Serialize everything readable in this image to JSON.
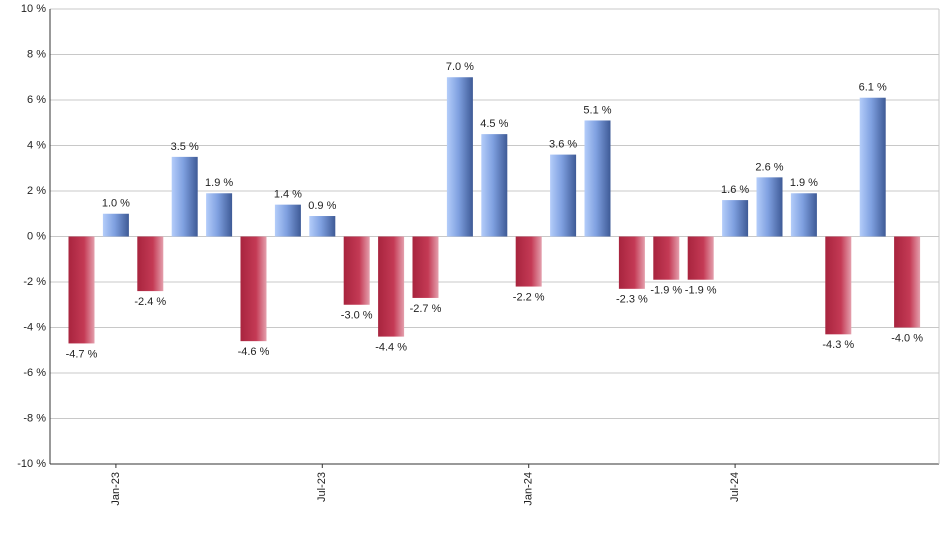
{
  "chart_data": {
    "type": "bar",
    "categories": [
      null,
      "Jan-23",
      null,
      null,
      null,
      null,
      null,
      "Jul-23",
      null,
      null,
      null,
      null,
      null,
      "Jan-24",
      null,
      null,
      null,
      null,
      null,
      "Jul-24",
      null,
      null,
      null,
      null,
      null
    ],
    "values": [
      -4.7,
      1.0,
      -2.4,
      3.5,
      1.9,
      -4.6,
      1.4,
      0.9,
      -3.0,
      -4.4,
      -2.7,
      7.0,
      4.5,
      -2.2,
      3.6,
      5.1,
      -2.3,
      -1.9,
      -1.9,
      1.6,
      2.6,
      1.9,
      -4.3,
      6.1,
      -4.0
    ],
    "value_labels": [
      "-4.7 %",
      "1.0 %",
      "-2.4 %",
      "3.5 %",
      "1.9 %",
      "-4.6 %",
      "1.4 %",
      "0.9 %",
      "-3.0 %",
      "-4.4 %",
      "-2.7 %",
      "7.0 %",
      "4.5 %",
      "-2.2 %",
      "3.6 %",
      "5.1 %",
      "-2.3 %",
      "-1.9 %",
      "-1.9 %",
      "1.6 %",
      "2.6 %",
      "1.9 %",
      "-4.3 %",
      "6.1 %",
      "-4.0 %"
    ],
    "colors": {
      "positive": "#7fa0e0",
      "negative": "#c43a55"
    },
    "ylim": [
      -10,
      10
    ],
    "yticks": [
      {
        "value": -10,
        "label": "-10 %"
      },
      {
        "value": -8,
        "label": "-8 %"
      },
      {
        "value": -6,
        "label": "-6 %"
      },
      {
        "value": -4,
        "label": "-4 %"
      },
      {
        "value": -2,
        "label": "-2 %"
      },
      {
        "value": 0,
        "label": "0 %"
      },
      {
        "value": 2,
        "label": "2 %"
      },
      {
        "value": 4,
        "label": "4 %"
      },
      {
        "value": 6,
        "label": "6 %"
      },
      {
        "value": 8,
        "label": "8 %"
      },
      {
        "value": 10,
        "label": "10 %"
      }
    ],
    "grid": true
  }
}
